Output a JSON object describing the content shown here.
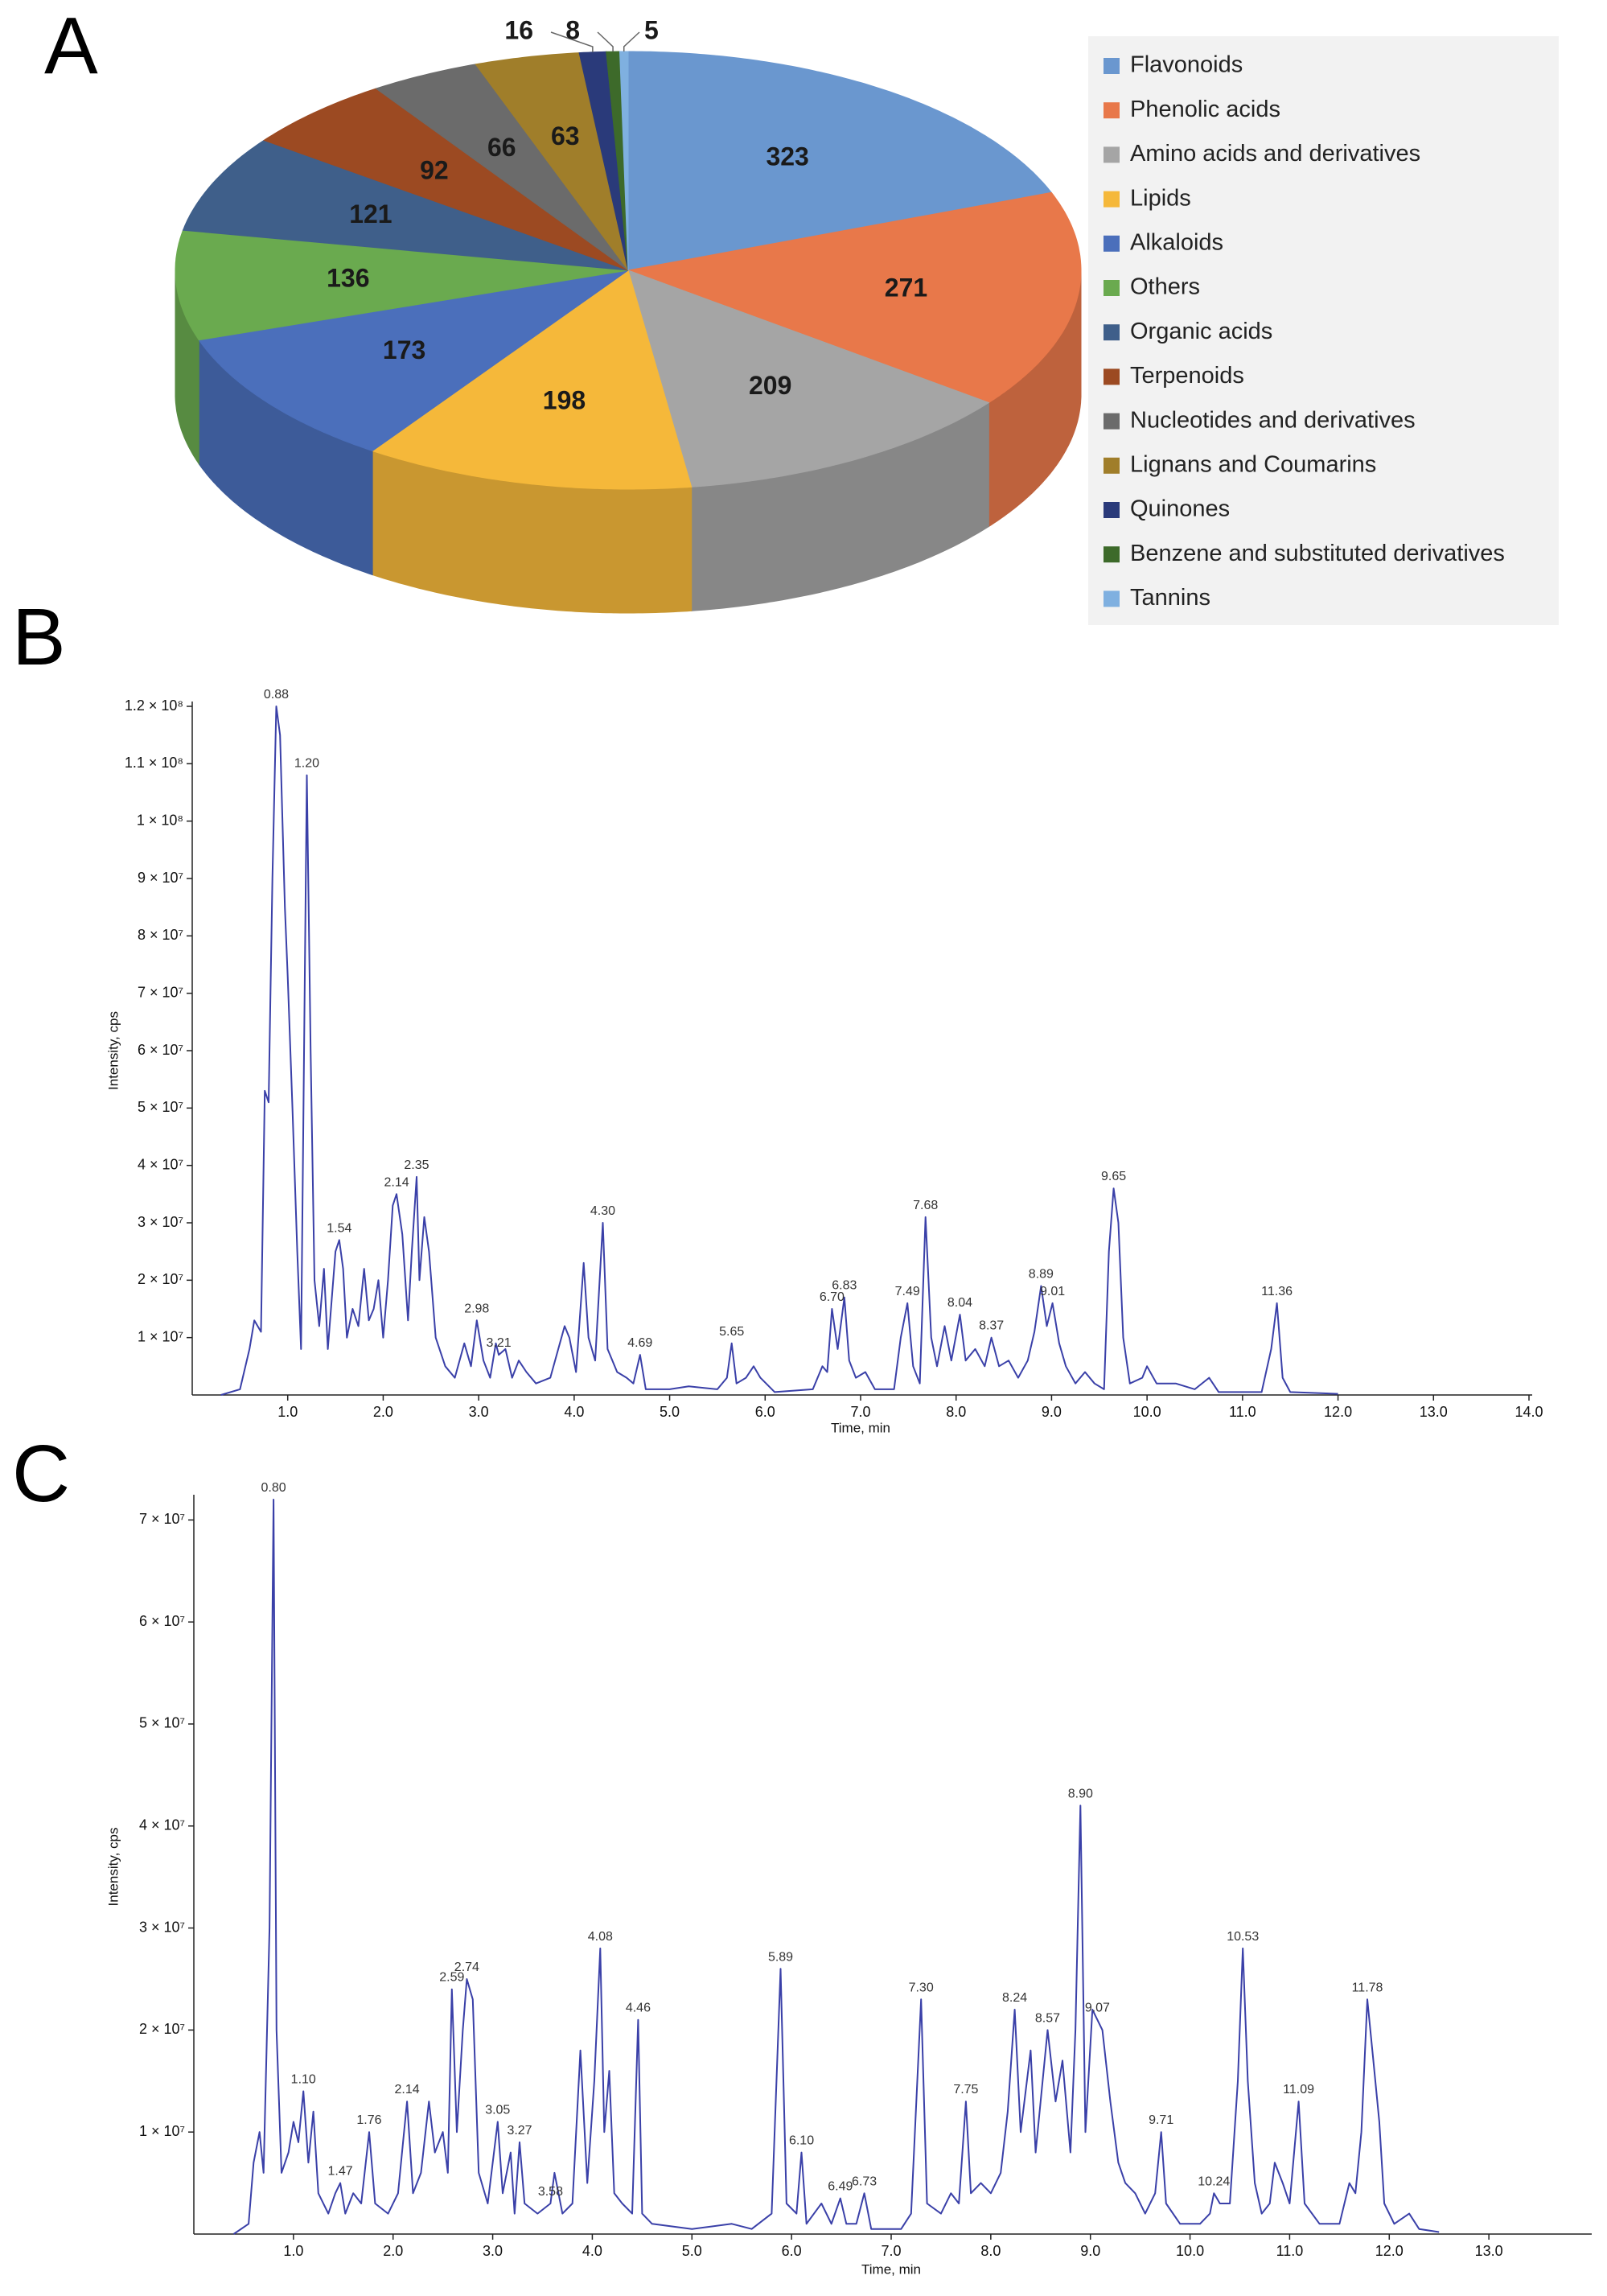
{
  "chart_data": [
    {
      "type": "pie",
      "panel": "A",
      "categories": [
        "Flavonoids",
        "Phenolic acids",
        "Amino acids and derivatives",
        "Lipids",
        "Alkaloids",
        "Others",
        "Organic acids",
        "Terpenoids",
        "Nucleotides and derivatives",
        "Lignans and Coumarins",
        "Quinones",
        "Benzene and substituted derivatives",
        "Tannins"
      ],
      "values": [
        323,
        271,
        209,
        198,
        173,
        136,
        121,
        92,
        66,
        63,
        16,
        8,
        5
      ],
      "colors": [
        "#6a97cf",
        "#e8784a",
        "#a5a5a5",
        "#f5b83a",
        "#4b6fbb",
        "#6aaa4f",
        "#3f5f8a",
        "#9c4a22",
        "#6b6b6b",
        "#a07e2a",
        "#2a3a7a",
        "#3d6a2a",
        "#7fb0e0"
      ],
      "legend": "right"
    },
    {
      "type": "line",
      "panel": "B",
      "xlabel": "Time, min",
      "ylabel": "Intensity, cps",
      "color": "#3a40a8",
      "xlim": [
        0,
        14
      ],
      "ylim": [
        0,
        120000000.0
      ],
      "xticks": [
        {
          "value": 1,
          "label": "1.0"
        },
        {
          "value": 2,
          "label": "2.0"
        },
        {
          "value": 3,
          "label": "3.0"
        },
        {
          "value": 4,
          "label": "4.0"
        },
        {
          "value": 5,
          "label": "5.0"
        },
        {
          "value": 6,
          "label": "6.0"
        },
        {
          "value": 7,
          "label": "7.0"
        },
        {
          "value": 8,
          "label": "8.0"
        },
        {
          "value": 9,
          "label": "9.0"
        },
        {
          "value": 10,
          "label": "10.0"
        },
        {
          "value": 11,
          "label": "11.0"
        },
        {
          "value": 12,
          "label": "12.0"
        },
        {
          "value": 13,
          "label": "13.0"
        },
        {
          "value": 14,
          "label": "14.0"
        }
      ],
      "yticks": [
        {
          "value": 10000000.0,
          "label": "1 × 10⁷"
        },
        {
          "value": 20000000.0,
          "label": "2 × 10⁷"
        },
        {
          "value": 30000000.0,
          "label": "3 × 10⁷"
        },
        {
          "value": 40000000.0,
          "label": "4 × 10⁷"
        },
        {
          "value": 50000000.0,
          "label": "5 × 10⁷"
        },
        {
          "value": 60000000.0,
          "label": "6 × 10⁷"
        },
        {
          "value": 70000000.0,
          "label": "7 × 10⁷"
        },
        {
          "value": 80000000.0,
          "label": "8 × 10⁷"
        },
        {
          "value": 90000000.0,
          "label": "9 × 10⁷"
        },
        {
          "value": 100000000.0,
          "label": "1 × 10⁸"
        },
        {
          "value": 110000000.0,
          "label": "1.1 × 10⁸"
        },
        {
          "value": 120000000.0,
          "label": "1.2 × 10⁸"
        }
      ],
      "x": [
        0.3,
        0.5,
        0.6,
        0.65,
        0.72,
        0.76,
        0.8,
        0.84,
        0.88,
        0.92,
        0.97,
        1.0,
        1.05,
        1.1,
        1.14,
        1.2,
        1.24,
        1.28,
        1.33,
        1.38,
        1.42,
        1.5,
        1.54,
        1.58,
        1.62,
        1.68,
        1.74,
        1.8,
        1.85,
        1.9,
        1.95,
        2.0,
        2.05,
        2.1,
        2.14,
        2.2,
        2.26,
        2.3,
        2.35,
        2.38,
        2.43,
        2.48,
        2.55,
        2.65,
        2.75,
        2.85,
        2.92,
        2.98,
        3.05,
        3.12,
        3.18,
        3.21,
        3.28,
        3.35,
        3.42,
        3.5,
        3.6,
        3.75,
        3.9,
        3.95,
        4.02,
        4.1,
        4.15,
        4.22,
        4.3,
        4.35,
        4.45,
        4.55,
        4.62,
        4.69,
        4.75,
        5.0,
        5.2,
        5.5,
        5.6,
        5.65,
        5.7,
        5.8,
        5.88,
        5.95,
        6.1,
        6.5,
        6.6,
        6.65,
        6.7,
        6.76,
        6.83,
        6.88,
        6.95,
        7.05,
        7.15,
        7.35,
        7.42,
        7.49,
        7.55,
        7.62,
        7.68,
        7.74,
        7.8,
        7.88,
        7.95,
        8.04,
        8.1,
        8.2,
        8.3,
        8.37,
        8.45,
        8.55,
        8.65,
        8.75,
        8.82,
        8.89,
        8.95,
        9.01,
        9.08,
        9.15,
        9.25,
        9.35,
        9.45,
        9.55,
        9.6,
        9.65,
        9.7,
        9.75,
        9.82,
        9.95,
        10.0,
        10.1,
        10.3,
        10.5,
        10.65,
        10.75,
        11.2,
        11.3,
        11.36,
        11.42,
        11.5,
        12.0
      ],
      "values": [
        0,
        1000000.0,
        8000000.0,
        13000000.0,
        11000000.0,
        53000000.0,
        51000000.0,
        90000000.0,
        120000000.0,
        115000000.0,
        85000000.0,
        73000000.0,
        50000000.0,
        25000000.0,
        8000000.0,
        108000000.0,
        60000000.0,
        20000000.0,
        12000000.0,
        22000000.0,
        8000000.0,
        25000000.0,
        27000000.0,
        22000000.0,
        10000000.0,
        15000000.0,
        12000000.0,
        22000000.0,
        13000000.0,
        15000000.0,
        20000000.0,
        10000000.0,
        20000000.0,
        33000000.0,
        35000000.0,
        28000000.0,
        13000000.0,
        25000000.0,
        38000000.0,
        20000000.0,
        31000000.0,
        25000000.0,
        10000000.0,
        5000000.0,
        3000000.0,
        9000000.0,
        5000000.0,
        13000000.0,
        6000000.0,
        3000000.0,
        9000000.0,
        7000000.0,
        8000000.0,
        3000000.0,
        6000000.0,
        4000000.0,
        2000000.0,
        3000000.0,
        12000000.0,
        10000000.0,
        4000000.0,
        23000000.0,
        10000000.0,
        6000000.0,
        30000000.0,
        8000000.0,
        4000000.0,
        3000000.0,
        2000000.0,
        7000000.0,
        1000000.0,
        1000000.0,
        1500000.0,
        1000000.0,
        3000000.0,
        9000000.0,
        2000000.0,
        3000000.0,
        5000000.0,
        3000000.0,
        500000.0,
        1000000.0,
        5000000.0,
        4000000.0,
        15000000.0,
        8000000.0,
        17000000.0,
        6000000.0,
        3000000.0,
        4000000.0,
        1000000.0,
        1000000.0,
        10000000.0,
        16000000.0,
        5000000.0,
        2000000.0,
        31000000.0,
        10000000.0,
        5000000.0,
        12000000.0,
        6000000.0,
        14000000.0,
        6000000.0,
        8000000.0,
        5000000.0,
        10000000.0,
        5000000.0,
        6000000.0,
        3000000.0,
        6000000.0,
        11000000.0,
        19000000.0,
        12000000.0,
        16000000.0,
        9000000.0,
        5000000.0,
        2000000.0,
        4000000.0,
        2000000.0,
        1000000.0,
        25000000.0,
        36000000.0,
        30000000.0,
        10000000.0,
        2000000.0,
        3000000.0,
        5000000.0,
        2000000.0,
        2000000.0,
        1000000.0,
        3000000.0,
        500000.0,
        500000.0,
        8000000.0,
        16000000.0,
        3000000.0,
        500000.0,
        200000.0
      ],
      "peaks": [
        0.88,
        {
          "value": 1.2,
          "label": "1.20"
        },
        1.54,
        2.14,
        2.35,
        2.98,
        3.21,
        {
          "value": 4.3,
          "label": "4.30"
        },
        4.69,
        5.65,
        {
          "value": 6.7,
          "label": "6.70"
        },
        6.83,
        7.49,
        7.68,
        8.04,
        8.37,
        8.89,
        9.01,
        9.65,
        11.36
      ]
    },
    {
      "type": "line",
      "panel": "C",
      "xlabel": "Time, min",
      "ylabel": "Intensity, cps",
      "color": "#3a40a8",
      "xlim": [
        0,
        14
      ],
      "ylim": [
        0,
        72000000.0
      ],
      "xticks": [
        {
          "value": 1,
          "label": "1.0"
        },
        {
          "value": 2,
          "label": "2.0"
        },
        {
          "value": 3,
          "label": "3.0"
        },
        {
          "value": 4,
          "label": "4.0"
        },
        {
          "value": 5,
          "label": "5.0"
        },
        {
          "value": 6,
          "label": "6.0"
        },
        {
          "value": 7,
          "label": "7.0"
        },
        {
          "value": 8,
          "label": "8.0"
        },
        {
          "value": 9,
          "label": "9.0"
        },
        {
          "value": 10,
          "label": "10.0"
        },
        {
          "value": 11,
          "label": "11.0"
        },
        {
          "value": 12,
          "label": "12.0"
        },
        {
          "value": 13,
          "label": "13.0"
        }
      ],
      "yticks": [
        {
          "value": 10000000.0,
          "label": "1 × 10⁷"
        },
        {
          "value": 20000000.0,
          "label": "2 × 10⁷"
        },
        {
          "value": 30000000.0,
          "label": "3 × 10⁷"
        },
        {
          "value": 40000000.0,
          "label": "4 × 10⁷"
        },
        {
          "value": 50000000.0,
          "label": "5 × 10⁷"
        },
        {
          "value": 60000000.0,
          "label": "6 × 10⁷"
        },
        {
          "value": 70000000.0,
          "label": "7 × 10⁷"
        }
      ],
      "x": [
        0.4,
        0.55,
        0.6,
        0.66,
        0.7,
        0.76,
        0.8,
        0.83,
        0.88,
        0.95,
        1.0,
        1.05,
        1.1,
        1.15,
        1.2,
        1.25,
        1.35,
        1.42,
        1.47,
        1.52,
        1.6,
        1.68,
        1.76,
        1.82,
        1.95,
        2.05,
        2.1,
        2.14,
        2.2,
        2.28,
        2.36,
        2.42,
        2.5,
        2.55,
        2.59,
        2.64,
        2.7,
        2.74,
        2.8,
        2.86,
        2.95,
        3.05,
        3.1,
        3.18,
        3.22,
        3.27,
        3.32,
        3.45,
        3.58,
        3.62,
        3.7,
        3.8,
        3.88,
        3.95,
        4.02,
        4.08,
        4.12,
        4.17,
        4.22,
        4.3,
        4.4,
        4.46,
        4.5,
        4.6,
        5.0,
        5.4,
        5.6,
        5.8,
        5.89,
        5.95,
        6.05,
        6.1,
        6.15,
        6.3,
        6.4,
        6.49,
        6.55,
        6.65,
        6.73,
        6.8,
        7.1,
        7.2,
        7.3,
        7.36,
        7.5,
        7.6,
        7.68,
        7.75,
        7.8,
        7.9,
        8.0,
        8.1,
        8.17,
        8.24,
        8.3,
        8.4,
        8.45,
        8.5,
        8.57,
        8.65,
        8.72,
        8.8,
        8.85,
        8.9,
        8.95,
        9.02,
        9.07,
        9.12,
        9.2,
        9.28,
        9.35,
        9.45,
        9.55,
        9.65,
        9.71,
        9.76,
        9.9,
        10.1,
        10.2,
        10.24,
        10.3,
        10.4,
        10.48,
        10.53,
        10.58,
        10.65,
        10.72,
        10.8,
        10.85,
        10.93,
        11.0,
        11.09,
        11.15,
        11.3,
        11.5,
        11.6,
        11.66,
        11.72,
        11.78,
        11.84,
        11.9,
        11.95,
        12.05,
        12.2,
        12.3,
        12.5
      ],
      "values": [
        0,
        1000000.0,
        7000000.0,
        10000000.0,
        6000000.0,
        30000000.0,
        72000000.0,
        20000000.0,
        6000000.0,
        8000000.0,
        11000000.0,
        9000000.0,
        14000000.0,
        7000000.0,
        12000000.0,
        4000000.0,
        2000000.0,
        4000000.0,
        5000000.0,
        2000000.0,
        4000000.0,
        3000000.0,
        10000000.0,
        3000000.0,
        2000000.0,
        4000000.0,
        9000000.0,
        13000000.0,
        4000000.0,
        6000000.0,
        13000000.0,
        8000000.0,
        10000000.0,
        6000000.0,
        24000000.0,
        10000000.0,
        20000000.0,
        25000000.0,
        23000000.0,
        6000000.0,
        3000000.0,
        11000000.0,
        4000000.0,
        8000000.0,
        2000000.0,
        9000000.0,
        3000000.0,
        2000000.0,
        3000000.0,
        6000000.0,
        2000000.0,
        3000000.0,
        18000000.0,
        5000000.0,
        15000000.0,
        28000000.0,
        10000000.0,
        16000000.0,
        4000000.0,
        3000000.0,
        2000000.0,
        21000000.0,
        2000000.0,
        1000000.0,
        500000.0,
        1000000.0,
        500000.0,
        2000000.0,
        26000000.0,
        3000000.0,
        2000000.0,
        8000000.0,
        1000000.0,
        3000000.0,
        1000000.0,
        3500000.0,
        1000000.0,
        1000000.0,
        4000000.0,
        500000.0,
        500000.0,
        2000000.0,
        23000000.0,
        3000000.0,
        2000000.0,
        4000000.0,
        3000000.0,
        13000000.0,
        4000000.0,
        5000000.0,
        4000000.0,
        6000000.0,
        12000000.0,
        22000000.0,
        10000000.0,
        18000000.0,
        8000000.0,
        13000000.0,
        20000000.0,
        13000000.0,
        17000000.0,
        8000000.0,
        20000000.0,
        42000000.0,
        10000000.0,
        22000000.0,
        21000000.0,
        20000000.0,
        13000000.0,
        7000000.0,
        5000000.0,
        4000000.0,
        2000000.0,
        4000000.0,
        10000000.0,
        3000000.0,
        1000000.0,
        1000000.0,
        2000000.0,
        4000000.0,
        3000000.0,
        3000000.0,
        15000000.0,
        28000000.0,
        15000000.0,
        5000000.0,
        2000000.0,
        3000000.0,
        7000000.0,
        5000000.0,
        3000000.0,
        13000000.0,
        3000000.0,
        1000000.0,
        1000000.0,
        5000000.0,
        4000000.0,
        10000000.0,
        23000000.0,
        17000000.0,
        11000000.0,
        3000000.0,
        1000000.0,
        2000000.0,
        500000.0,
        200000.0
      ],
      "peaks": [
        {
          "value": 0.8,
          "label": "0.80"
        },
        {
          "value": 1.1,
          "label": "1.10"
        },
        1.47,
        1.76,
        2.14,
        2.59,
        2.74,
        3.05,
        3.27,
        3.58,
        4.08,
        4.46,
        5.89,
        {
          "value": 6.1,
          "label": "6.10"
        },
        6.49,
        6.73,
        {
          "value": 7.3,
          "label": "7.30"
        },
        7.75,
        8.24,
        8.57,
        {
          "value": 8.9,
          "label": "8.90"
        },
        9.07,
        9.71,
        10.24,
        10.53,
        11.09,
        11.78
      ]
    }
  ]
}
